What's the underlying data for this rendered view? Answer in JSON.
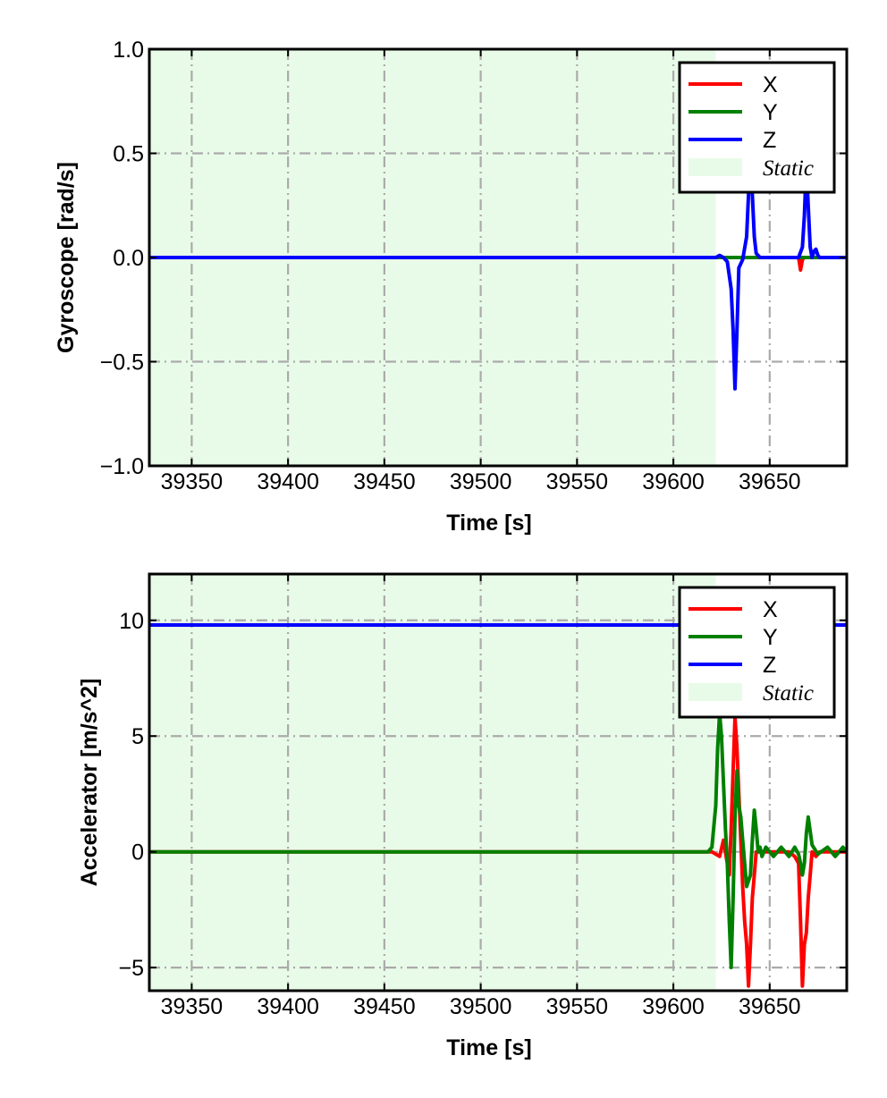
{
  "chart_data": [
    {
      "type": "line",
      "xlabel": "Time [s]",
      "ylabel": "Gyroscope [rad/s]",
      "xlim": [
        39328,
        39690
      ],
      "ylim": [
        -1.0,
        1.0
      ],
      "x_ticks": [
        39350,
        39400,
        39450,
        39500,
        39550,
        39600,
        39650
      ],
      "x_tick_labels": [
        "39350",
        "39400",
        "39450",
        "39500",
        "39550",
        "39600",
        "39650"
      ],
      "y_ticks": [
        -1.0,
        -0.5,
        0.0,
        0.5,
        1.0
      ],
      "y_tick_labels": [
        "−1.0",
        "−0.5",
        "0.0",
        "0.5",
        "1.0"
      ],
      "grid": true,
      "grid_style": "dash-dot gray",
      "legend_position": "top-right",
      "static_region": {
        "label": "Static",
        "x_start": 39328,
        "x_end": 39622,
        "color": "#e8fbe8"
      },
      "series": [
        {
          "name": "X",
          "color": "#ff0000",
          "x": [
            39328,
            39622,
            39625,
            39630,
            39635,
            39640,
            39645,
            39660,
            39665,
            39666,
            39667,
            39668,
            39670,
            39675,
            39680,
            39690
          ],
          "y": [
            0.0,
            0.0,
            0.0,
            0.0,
            0.0,
            0.0,
            0.0,
            0.0,
            0.0,
            -0.06,
            -0.01,
            0.0,
            0.0,
            0.0,
            0.0,
            0.0
          ]
        },
        {
          "name": "Y",
          "color": "#008000",
          "x": [
            39328,
            39622,
            39630,
            39640,
            39650,
            39660,
            39670,
            39680,
            39690
          ],
          "y": [
            0.0,
            0.0,
            0.0,
            0.0,
            0.0,
            0.0,
            0.0,
            0.0,
            0.0
          ]
        },
        {
          "name": "Z",
          "color": "#0000ff",
          "x": [
            39328,
            39622,
            39624,
            39626,
            39628,
            39630,
            39631,
            39632,
            39633,
            39634,
            39636,
            39638,
            39639,
            39640,
            39641,
            39642,
            39643,
            39645,
            39650,
            39660,
            39665,
            39667,
            39668,
            39669,
            39670,
            39671,
            39672,
            39673,
            39674,
            39675,
            39676,
            39680,
            39690
          ],
          "y": [
            0.0,
            0.0,
            0.01,
            0.0,
            -0.02,
            -0.15,
            -0.35,
            -0.63,
            -0.35,
            -0.05,
            -0.01,
            0.1,
            0.3,
            0.5,
            0.3,
            0.1,
            0.02,
            0.0,
            0.0,
            0.0,
            0.0,
            0.05,
            0.2,
            0.45,
            0.25,
            0.05,
            0.0,
            0.03,
            0.04,
            0.01,
            0.0,
            0.0,
            0.0
          ]
        }
      ]
    },
    {
      "type": "line",
      "xlabel": "Time [s]",
      "ylabel": "Accelerator [m/s^2]",
      "xlim": [
        39328,
        39690
      ],
      "ylim": [
        -6.0,
        12.0
      ],
      "x_ticks": [
        39350,
        39400,
        39450,
        39500,
        39550,
        39600,
        39650
      ],
      "x_tick_labels": [
        "39350",
        "39400",
        "39450",
        "39500",
        "39550",
        "39600",
        "39650"
      ],
      "y_ticks": [
        -5,
        0,
        5,
        10
      ],
      "y_tick_labels": [
        "−5",
        "0",
        "5",
        "10"
      ],
      "grid": true,
      "grid_style": "dash-dot gray",
      "legend_position": "top-right",
      "static_region": {
        "label": "Static",
        "x_start": 39328,
        "x_end": 39622,
        "color": "#e8fbe8"
      },
      "series": [
        {
          "name": "X",
          "color": "#ff0000",
          "x": [
            39328,
            39620,
            39624,
            39626,
            39628,
            39629,
            39630,
            39631,
            39632,
            39633,
            39634,
            39635,
            39636,
            39637,
            39638,
            39639,
            39640,
            39641,
            39642,
            39643,
            39645,
            39650,
            39655,
            39660,
            39663,
            39665,
            39666,
            39667,
            39668,
            39669,
            39670,
            39671,
            39672,
            39674,
            39676,
            39680,
            39685,
            39690
          ],
          "y": [
            0.0,
            0.0,
            -0.2,
            0.5,
            -0.5,
            -1.0,
            1.0,
            3.5,
            5.8,
            4.5,
            2.5,
            0.5,
            -1.5,
            -3.0,
            -4.0,
            -5.8,
            -4.0,
            -2.0,
            -1.0,
            0.0,
            0.0,
            0.0,
            0.0,
            0.0,
            -0.2,
            -0.5,
            -3.0,
            -5.8,
            -4.0,
            -3.5,
            -2.0,
            -1.0,
            0.0,
            -0.2,
            0.0,
            0.0,
            0.0,
            0.0
          ]
        },
        {
          "name": "Y",
          "color": "#008000",
          "x": [
            39328,
            39618,
            39620,
            39622,
            39623,
            39624,
            39625,
            39626,
            39627,
            39628,
            39629,
            39630,
            39631,
            39632,
            39633,
            39634,
            39635,
            39636,
            39637,
            39638,
            39640,
            39641,
            39642,
            39643,
            39644,
            39645,
            39646,
            39648,
            39652,
            39656,
            39660,
            39663,
            39665,
            39666,
            39667,
            39668,
            39669,
            39670,
            39672,
            39675,
            39680,
            39684,
            39688,
            39690
          ],
          "y": [
            0.0,
            0.0,
            0.2,
            2.0,
            4.5,
            6.0,
            5.0,
            3.0,
            1.0,
            -0.5,
            -3.0,
            -5.0,
            -2.0,
            1.5,
            3.5,
            2.0,
            1.5,
            0.5,
            -0.5,
            -1.5,
            -1.0,
            0.5,
            1.8,
            1.0,
            0.0,
            0.2,
            -0.2,
            0.2,
            -0.2,
            0.2,
            -0.2,
            0.2,
            -0.1,
            -0.5,
            -1.0,
            -0.5,
            0.8,
            1.5,
            0.3,
            -0.1,
            0.2,
            -0.2,
            0.2,
            0.0
          ]
        },
        {
          "name": "Z",
          "color": "#0000ff",
          "x": [
            39328,
            39620,
            39622,
            39690
          ],
          "y": [
            9.8,
            9.8,
            9.8,
            9.8
          ]
        }
      ]
    }
  ]
}
